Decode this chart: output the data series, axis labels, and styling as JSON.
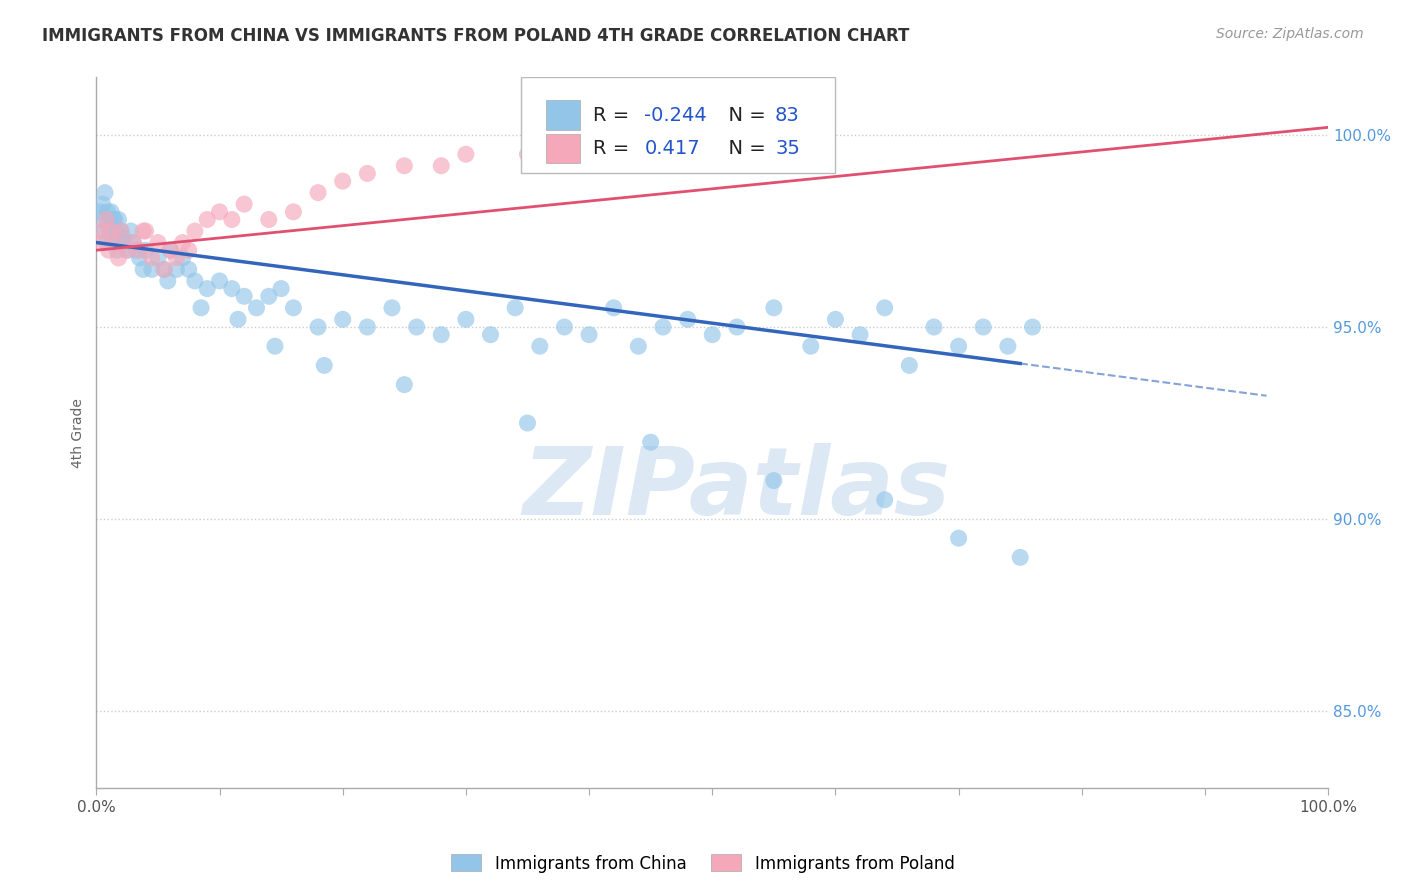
{
  "title": "IMMIGRANTS FROM CHINA VS IMMIGRANTS FROM POLAND 4TH GRADE CORRELATION CHART",
  "source": "Source: ZipAtlas.com",
  "ylabel": "4th Grade",
  "xlim": [
    0.0,
    100.0
  ],
  "ylim": [
    83.0,
    101.5
  ],
  "y_ticks": [
    85.0,
    90.0,
    95.0,
    100.0
  ],
  "y_tick_labels": [
    "85.0%",
    "90.0%",
    "95.0%",
    "100.0%"
  ],
  "china_R": -0.244,
  "china_N": 83,
  "poland_R": 0.417,
  "poland_N": 35,
  "china_color": "#92C5E8",
  "poland_color": "#F4A8BA",
  "china_line_color": "#3366BB",
  "poland_line_color": "#E05070",
  "background_color": "#FFFFFF",
  "grid_color": "#CCCCCC",
  "china_line_start_y": 97.2,
  "china_line_end_y": 93.0,
  "china_solid_end_x": 75.0,
  "poland_line_start_y": 97.0,
  "poland_line_end_y": 100.2,
  "watermark_text": "ZIPatlas",
  "watermark_color": "#DDE8F5",
  "china_scatter_x": [
    0.3,
    0.4,
    0.5,
    0.6,
    0.7,
    0.8,
    0.9,
    1.0,
    1.1,
    1.2,
    1.3,
    1.5,
    1.6,
    1.7,
    1.8,
    2.0,
    2.2,
    2.5,
    2.8,
    3.0,
    3.2,
    3.5,
    4.0,
    4.5,
    5.0,
    5.5,
    6.0,
    6.5,
    7.0,
    7.5,
    8.0,
    9.0,
    10.0,
    11.0,
    12.0,
    13.0,
    14.0,
    15.0,
    16.0,
    18.0,
    20.0,
    22.0,
    24.0,
    26.0,
    28.0,
    30.0,
    32.0,
    34.0,
    36.0,
    38.0,
    40.0,
    42.0,
    44.0,
    46.0,
    48.0,
    50.0,
    52.0,
    55.0,
    58.0,
    60.0,
    62.0,
    64.0,
    66.0,
    68.0,
    70.0,
    72.0,
    74.0,
    76.0,
    1.4,
    2.1,
    3.8,
    5.8,
    8.5,
    11.5,
    14.5,
    18.5,
    25.0,
    35.0,
    45.0,
    55.0,
    64.0,
    70.0,
    75.0
  ],
  "china_scatter_y": [
    98.0,
    97.8,
    98.2,
    97.5,
    98.5,
    97.2,
    98.0,
    97.8,
    97.5,
    98.0,
    97.2,
    97.8,
    97.5,
    97.0,
    97.8,
    97.5,
    97.3,
    97.0,
    97.5,
    97.2,
    97.0,
    96.8,
    97.0,
    96.5,
    96.8,
    96.5,
    97.0,
    96.5,
    96.8,
    96.5,
    96.2,
    96.0,
    96.2,
    96.0,
    95.8,
    95.5,
    95.8,
    96.0,
    95.5,
    95.0,
    95.2,
    95.0,
    95.5,
    95.0,
    94.8,
    95.2,
    94.8,
    95.5,
    94.5,
    95.0,
    94.8,
    95.5,
    94.5,
    95.0,
    95.2,
    94.8,
    95.0,
    95.5,
    94.5,
    95.2,
    94.8,
    95.5,
    94.0,
    95.0,
    94.5,
    95.0,
    94.5,
    95.0,
    97.8,
    97.2,
    96.5,
    96.2,
    95.5,
    95.2,
    94.5,
    94.0,
    93.5,
    92.5,
    92.0,
    91.0,
    90.5,
    89.5,
    89.0
  ],
  "poland_scatter_x": [
    0.3,
    0.5,
    0.8,
    1.0,
    1.2,
    1.5,
    1.8,
    2.0,
    2.5,
    3.0,
    3.5,
    4.0,
    4.5,
    5.0,
    5.5,
    6.0,
    6.5,
    7.0,
    8.0,
    9.0,
    10.0,
    12.0,
    14.0,
    16.0,
    18.0,
    3.8,
    7.5,
    11.0,
    20.0,
    25.0,
    30.0,
    35.0,
    40.0,
    22.0,
    28.0
  ],
  "poland_scatter_y": [
    97.5,
    97.2,
    97.8,
    97.0,
    97.5,
    97.2,
    96.8,
    97.5,
    97.0,
    97.2,
    97.0,
    97.5,
    96.8,
    97.2,
    96.5,
    97.0,
    96.8,
    97.2,
    97.5,
    97.8,
    98.0,
    98.2,
    97.8,
    98.0,
    98.5,
    97.5,
    97.0,
    97.8,
    98.8,
    99.2,
    99.5,
    99.5,
    99.8,
    99.0,
    99.2
  ]
}
